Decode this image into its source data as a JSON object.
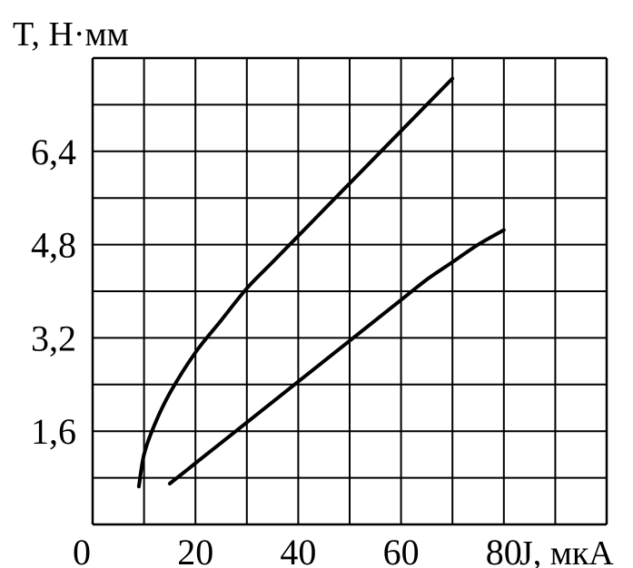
{
  "chart_data": {
    "type": "line",
    "ylabel": "T, Н·мм",
    "xlabel": "J, мкА",
    "x_ticks": [
      {
        "value": 0,
        "label": "0"
      },
      {
        "value": 20,
        "label": "20"
      },
      {
        "value": 40,
        "label": "40"
      },
      {
        "value": 60,
        "label": "60"
      },
      {
        "value": 80,
        "label": "80"
      }
    ],
    "y_ticks": [
      {
        "value": 1.6,
        "label": "1,6"
      },
      {
        "value": 3.2,
        "label": "3,2"
      },
      {
        "value": 4.8,
        "label": "4,8"
      },
      {
        "value": 6.4,
        "label": "6,4"
      }
    ],
    "xlim": [
      0,
      100
    ],
    "ylim": [
      0,
      8
    ],
    "grid": true,
    "grid_x_step": 10,
    "grid_y_step": 0.8,
    "series": [
      {
        "x": [
          9,
          10,
          12,
          15,
          20,
          25,
          30,
          35,
          40,
          45,
          50,
          55,
          60,
          65,
          70
        ],
        "y": [
          0.65,
          1.2,
          1.7,
          2.25,
          2.95,
          3.5,
          4.05,
          4.5,
          4.95,
          5.4,
          5.85,
          6.3,
          6.75,
          7.2,
          7.65
        ]
      },
      {
        "x": [
          15,
          20,
          25,
          30,
          35,
          40,
          45,
          50,
          55,
          60,
          65,
          70,
          75,
          80
        ],
        "y": [
          0.7,
          1.05,
          1.4,
          1.75,
          2.1,
          2.45,
          2.8,
          3.15,
          3.5,
          3.85,
          4.2,
          4.5,
          4.8,
          5.05
        ]
      }
    ]
  }
}
